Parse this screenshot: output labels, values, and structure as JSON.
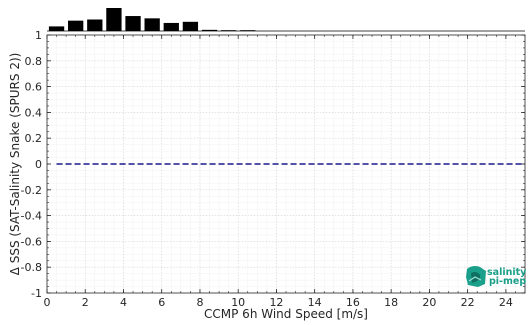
{
  "chart_data": {
    "type": "line",
    "xlabel": "CCMP 6h Wind Speed [m/s]",
    "ylabel": "Δ SSS (SAT-Salinity Snake (SPURS 2))",
    "xlim": [
      0,
      25
    ],
    "ylim": [
      -1,
      1
    ],
    "x_ticks": [
      0,
      2,
      4,
      6,
      8,
      10,
      12,
      14,
      16,
      18,
      20,
      22,
      24
    ],
    "y_ticks": [
      -1,
      -0.8,
      -0.6,
      -0.4,
      -0.2,
      0,
      0.2,
      0.4,
      0.6,
      0.8,
      1
    ],
    "x_tick_labels": [
      "0",
      "2",
      "4",
      "6",
      "8",
      "10",
      "12",
      "14",
      "16",
      "18",
      "20",
      "22",
      "24"
    ],
    "y_tick_labels": [
      "-1",
      "-0.8",
      "-0.6",
      "-0.4",
      "-0.2",
      "0",
      "0.2",
      "0.4",
      "0.6",
      "0.8",
      "1"
    ],
    "grid": true,
    "reference_line": {
      "y": 0,
      "x": [
        0.5,
        25
      ],
      "style": "dashed",
      "color": "#1a1a8c"
    },
    "histogram": {
      "bin_centers": [
        0.5,
        1.5,
        2.5,
        3.5,
        4.5,
        5.5,
        6.5,
        7.5,
        8.5,
        9.5,
        10.5
      ],
      "relative_counts": [
        0.2,
        0.45,
        0.5,
        1.0,
        0.65,
        0.55,
        0.35,
        0.4,
        0.05,
        0.01,
        0.01
      ],
      "color": "#000000"
    }
  },
  "logo": {
    "line1": "salinity",
    "line2": "pi-mep",
    "color": "#1aa08a"
  }
}
